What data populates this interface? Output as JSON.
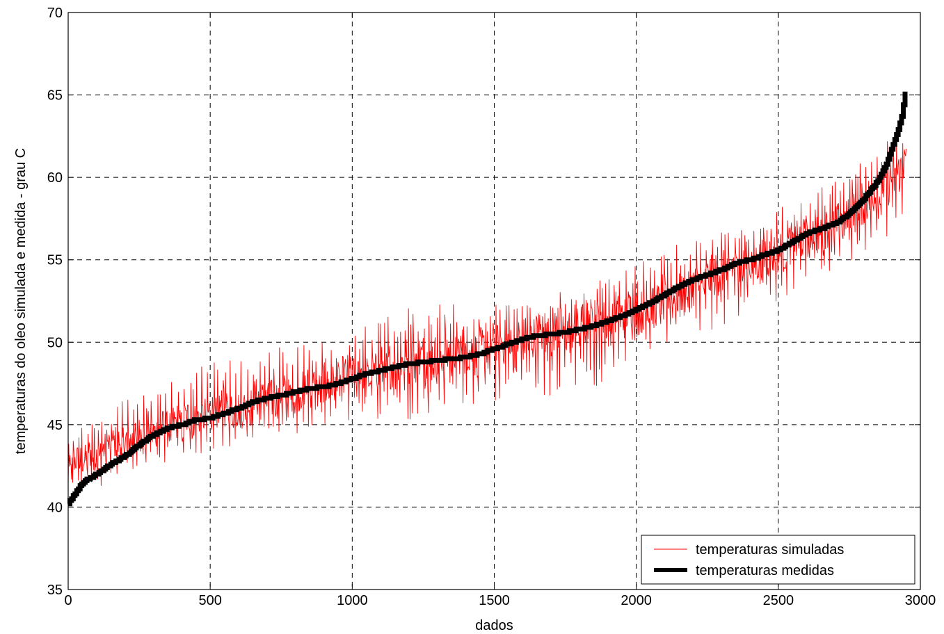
{
  "chart_data": {
    "type": "line",
    "title": "",
    "xlabel": "dados",
    "ylabel": "temperaturas do oleo simulada e medida - grau C",
    "xlim": [
      0,
      3000
    ],
    "ylim": [
      35,
      70
    ],
    "xticks": [
      0,
      500,
      1000,
      1500,
      2000,
      2500,
      3000
    ],
    "yticks": [
      35,
      40,
      45,
      50,
      55,
      60,
      65,
      70
    ],
    "xtick_labels": [
      "0",
      "500",
      "1000",
      "1500",
      "2000",
      "2500",
      "3000"
    ],
    "ytick_labels": [
      "35",
      "40",
      "45",
      "50",
      "55",
      "60",
      "65",
      "70"
    ],
    "grid": true,
    "legend_position": "bottom-right",
    "n_points": 2950,
    "series": [
      {
        "name": "temperaturas simuladas",
        "color": "#ff0000",
        "style": "thin solid",
        "approx_center_x": [
          0,
          300,
          600,
          900,
          1200,
          1500,
          1800,
          2100,
          2400,
          2700,
          2900,
          2950
        ],
        "approx_center_y": [
          42.5,
          44.6,
          46.2,
          47.3,
          48.8,
          49.6,
          50.8,
          52.6,
          54.8,
          57.0,
          59.8,
          61.0
        ],
        "approx_band_low_y": [
          40.5,
          42.5,
          43.8,
          44.8,
          45.3,
          46.4,
          46.7,
          49.8,
          51.5,
          54.5,
          56.0,
          58.0
        ],
        "approx_band_high_y": [
          44.5,
          47.5,
          49.3,
          50.2,
          52.2,
          52.6,
          53.2,
          55.7,
          57.5,
          59.8,
          62.5,
          63.0
        ]
      },
      {
        "name": "temperaturas medidas",
        "color": "#000000",
        "style": "thick solid, stepped",
        "x": [
          0,
          50,
          100,
          150,
          200,
          250,
          300,
          350,
          400,
          450,
          500,
          550,
          600,
          650,
          700,
          750,
          800,
          850,
          900,
          950,
          1000,
          1050,
          1100,
          1150,
          1200,
          1250,
          1300,
          1350,
          1400,
          1450,
          1500,
          1550,
          1600,
          1650,
          1700,
          1750,
          1800,
          1850,
          1900,
          1950,
          2000,
          2050,
          2100,
          2150,
          2200,
          2250,
          2300,
          2350,
          2400,
          2450,
          2500,
          2550,
          2600,
          2650,
          2700,
          2750,
          2800,
          2850,
          2880,
          2900,
          2920,
          2935,
          2945,
          2950
        ],
        "y": [
          40.2,
          41.5,
          42.0,
          42.6,
          43.1,
          43.8,
          44.4,
          44.8,
          45.0,
          45.3,
          45.4,
          45.7,
          46.0,
          46.4,
          46.6,
          46.8,
          47.0,
          47.2,
          47.3,
          47.5,
          47.8,
          48.1,
          48.3,
          48.5,
          48.7,
          48.8,
          48.9,
          49.0,
          49.1,
          49.3,
          49.6,
          49.9,
          50.2,
          50.4,
          50.5,
          50.6,
          50.8,
          51.0,
          51.3,
          51.6,
          52.0,
          52.4,
          52.9,
          53.4,
          53.8,
          54.1,
          54.4,
          54.8,
          55.0,
          55.3,
          55.6,
          56.1,
          56.6,
          56.9,
          57.2,
          57.8,
          58.7,
          59.8,
          60.8,
          61.8,
          62.8,
          63.8,
          65.0,
          66.0
        ]
      }
    ]
  }
}
